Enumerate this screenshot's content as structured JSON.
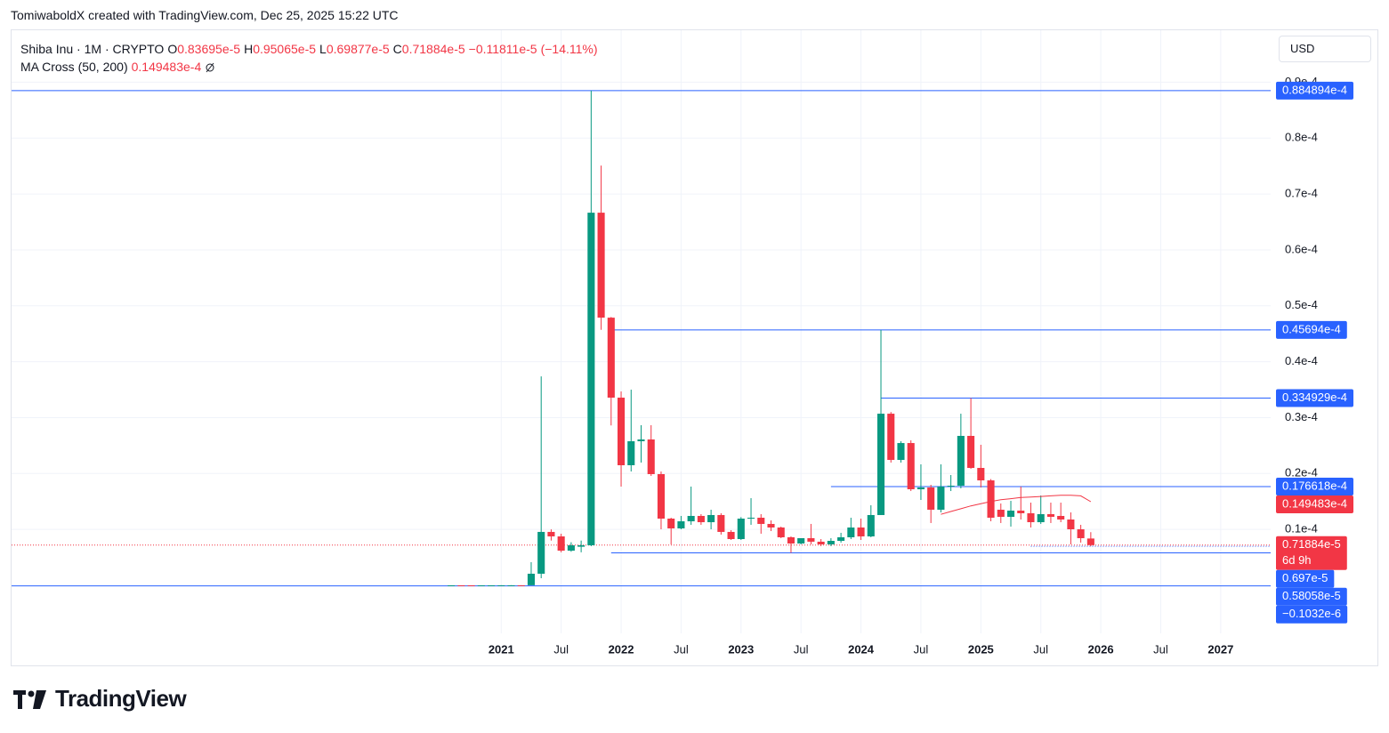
{
  "header": {
    "attribution": "TomiwaboldX created with TradingView.com, Dec 25, 2025 15:22 UTC",
    "currency": "USD"
  },
  "footer": {
    "brand": "TradingView"
  },
  "chart_data": {
    "type": "candlestick",
    "title": "Shiba Inu · 1M · CRYPTO",
    "ohlc_legend": [
      {
        "label": "O",
        "value": 8.3695e-06,
        "value_label": "0.83695e-5"
      },
      {
        "label": "H",
        "value": 9.5065e-06,
        "value_label": "0.95065e-5"
      },
      {
        "label": "L",
        "value": 6.9877e-06,
        "value_label": "0.69877e-5"
      },
      {
        "label": "C",
        "value": 7.1884e-06,
        "value_label": "0.71884e-5"
      }
    ],
    "change": {
      "value": -1.1811e-06,
      "value_label": "−0.11811e-5",
      "percent": -14.11,
      "percent_label": "(−14.11%)"
    },
    "up_color": "#089981",
    "down_color": "#f23645",
    "x": [
      "2020-08",
      "2020-09",
      "2020-10",
      "2020-11",
      "2020-12",
      "2021-01",
      "2021-02",
      "2021-03",
      "2021-04",
      "2021-05",
      "2021-06",
      "2021-07",
      "2021-08",
      "2021-09",
      "2021-10",
      "2021-11",
      "2021-12",
      "2022-01",
      "2022-02",
      "2022-03",
      "2022-04",
      "2022-05",
      "2022-06",
      "2022-07",
      "2022-08",
      "2022-09",
      "2022-10",
      "2022-11",
      "2022-12",
      "2023-01",
      "2023-02",
      "2023-03",
      "2023-04",
      "2023-05",
      "2023-06",
      "2023-07",
      "2023-08",
      "2023-09",
      "2023-10",
      "2023-11",
      "2023-12",
      "2024-01",
      "2024-02",
      "2024-03",
      "2024-04",
      "2024-05",
      "2024-06",
      "2024-07",
      "2024-08",
      "2024-09",
      "2024-10",
      "2024-11",
      "2024-12",
      "2025-01",
      "2025-02",
      "2025-03",
      "2025-04",
      "2025-05",
      "2025-06",
      "2025-07",
      "2025-08",
      "2025-09",
      "2025-10",
      "2025-11",
      "2025-12"
    ],
    "open": [
      2e-09,
      3e-09,
      2e-09,
      1.5e-09,
      2.5e-09,
      3e-09,
      9e-09,
      1e-08,
      7e-09,
      2.07e-06,
      9.55e-06,
      8.75e-06,
      6.2e-06,
      6.9e-06,
      7.16e-06,
      6.666e-05,
      4.788e-05,
      3.357e-05,
      2.148e-05,
      2.577e-05,
      2.609e-05,
      1.989e-05,
      1.193e-05,
      1.018e-05,
      1.145e-05,
      1.241e-05,
      1.129e-05,
      1.257e-05,
      9.55e-06,
      8.27e-06,
      1.193e-05,
      1.209e-05,
      1.098e-05,
      1.034e-05,
      8.59e-06,
      7.48e-06,
      8.43e-06,
      7.8e-06,
      7.32e-06,
      7.95e-06,
      8.59e-06,
      1.034e-05,
      8.75e-06,
      1.257e-05,
      3.07e-05,
      2.243e-05,
      2.545e-05,
      1.718e-05,
      1.75e-05,
      1.352e-05,
      1.766e-05,
      1.782e-05,
      2.673e-05,
      2.1e-05,
      1.877e-05,
      1.352e-05,
      1.225e-05,
      1.336e-05,
      1.289e-05,
      1.129e-05,
      1.273e-05,
      1.241e-05,
      1.177e-05,
      1.002e-05,
      8.3695e-06
    ],
    "high": [
      5e-09,
      4e-09,
      3e-09,
      3e-09,
      4e-09,
      1.5e-08,
      2.5e-08,
      1.8e-08,
      4.14e-06,
      3.738e-05,
      1e-05,
      9.23e-06,
      7.7e-06,
      8e-06,
      8.84894e-05,
      7.51e-05,
      4.8e-05,
      3.468e-05,
      3.5e-05,
      2.864e-05,
      2.864e-05,
      2.036e-05,
      1.209e-05,
      1.241e-05,
      1.766e-05,
      1.273e-05,
      1.352e-05,
      1.289e-05,
      9.86e-06,
      1.22e-05,
      1.559e-05,
      1.273e-05,
      1.161e-05,
      1.05e-05,
      8.75e-06,
      8.43e-06,
      1.098e-05,
      8.27e-06,
      8.43e-06,
      9.39e-06,
      1.209e-05,
      1.193e-05,
      1.432e-05,
      4.5694e-05,
      3.1e-05,
      2.577e-05,
      2.593e-05,
      2.164e-05,
      1.798e-05,
      2.164e-05,
      1.973e-05,
      3.07e-05,
      3.34929e-05,
      2.514e-05,
      1.9e-05,
      1.464e-05,
      1.511e-05,
      1.766e-05,
      1.479e-05,
      1.607e-05,
      1.479e-05,
      1.479e-05,
      1.304e-05,
      1.082e-05,
      9.5065e-06
    ],
    "low": [
      1e-09,
      1e-09,
      1e-09,
      1e-09,
      2e-09,
      2e-09,
      8e-09,
      6e-09,
      6e-09,
      1.27e-06,
      8e-06,
      5.9e-06,
      6e-06,
      5.9e-06,
      7e-06,
      4.57e-05,
      2.86e-05,
      1.766e-05,
      2.036e-05,
      2.195e-05,
      1.957e-05,
      1.002e-05,
      7.32e-06,
      1.002e-05,
      1.082e-05,
      1.082e-05,
      1.002e-05,
      9.07e-06,
      8.11e-06,
      8.11e-06,
      1.082e-05,
      9.23e-06,
      9.7e-06,
      8.43e-06,
      5.8058e-06,
      7.32e-06,
      7.32e-06,
      7e-06,
      7e-06,
      7.64e-06,
      8.27e-06,
      8.11e-06,
      8.59e-06,
      1.257e-05,
      2.195e-05,
      2.195e-05,
      1.686e-05,
      1.527e-05,
      1.114e-05,
      1.304e-05,
      1.686e-05,
      1.734e-05,
      2.084e-05,
      1.75e-05,
      1.145e-05,
      1.114e-05,
      1.05e-05,
      1.177e-05,
      1.034e-05,
      1.098e-05,
      1.114e-05,
      1.129e-05,
      7.32e-06,
      7.64e-06,
      6.9877e-06
    ],
    "close": [
      3e-09,
      2e-09,
      1.5e-09,
      2.5e-09,
      3e-09,
      9e-09,
      1e-08,
      7e-09,
      2.07e-06,
      9.55e-06,
      8.75e-06,
      6.2e-06,
      7.16e-06,
      7.16e-06,
      6.666e-05,
      4.788e-05,
      3.357e-05,
      2.148e-05,
      2.577e-05,
      2.609e-05,
      1.989e-05,
      1.193e-05,
      1.018e-05,
      1.145e-05,
      1.241e-05,
      1.129e-05,
      1.257e-05,
      9.55e-06,
      8.27e-06,
      1.193e-05,
      1.209e-05,
      1.098e-05,
      1.034e-05,
      8.59e-06,
      7.48e-06,
      8.43e-06,
      7.8e-06,
      7.32e-06,
      7.95e-06,
      8.59e-06,
      1.034e-05,
      8.75e-06,
      1.257e-05,
      3.07e-05,
      2.243e-05,
      2.545e-05,
      1.718e-05,
      1.75e-05,
      1.352e-05,
      1.766e-05,
      1.782e-05,
      2.673e-05,
      2.1e-05,
      1.877e-05,
      1.209e-05,
      1.225e-05,
      1.336e-05,
      1.289e-05,
      1.129e-05,
      1.273e-05,
      1.225e-05,
      1.177e-05,
      1.002e-05,
      8.43e-06,
      7.1884e-06
    ],
    "ma": {
      "name": "MA Cross (50, 200)",
      "color": "#f23645",
      "last_label": "0.149483e-4",
      "values": [
        null,
        null,
        null,
        null,
        null,
        null,
        null,
        null,
        null,
        null,
        null,
        null,
        null,
        null,
        null,
        null,
        null,
        null,
        null,
        null,
        null,
        null,
        null,
        null,
        null,
        null,
        null,
        null,
        null,
        null,
        null,
        null,
        null,
        null,
        null,
        null,
        null,
        null,
        null,
        null,
        null,
        null,
        null,
        null,
        null,
        null,
        null,
        null,
        null,
        1.27e-05,
        1.32e-05,
        1.37e-05,
        1.42e-05,
        1.46e-05,
        1.5e-05,
        1.53e-05,
        1.55e-05,
        1.57e-05,
        1.58e-05,
        1.59e-05,
        1.6e-05,
        1.61e-05,
        1.61e-05,
        1.6e-05,
        1.49483e-05
      ]
    },
    "last_price": {
      "value": 7.1884e-06,
      "label": "0.71884e-5",
      "countdown": "6d 9h",
      "color": "#f23645"
    },
    "line_color": "#2962ff",
    "price_lines": [
      {
        "value": 8.84894e-05,
        "label": "0.884894e-4"
      },
      {
        "value": 4.5694e-05,
        "label": "0.45694e-4",
        "from": "2021-12"
      },
      {
        "value": 3.34929e-05,
        "label": "0.334929e-4",
        "from": "2024-03"
      },
      {
        "value": 1.76618e-05,
        "label": "0.176618e-4",
        "from": "2023-10"
      },
      {
        "value": 6.97e-06,
        "label": "0.697e-5",
        "from": "2025-06",
        "style": "dotted"
      },
      {
        "value": 5.8058e-06,
        "label": "0.58058e-5",
        "from": "2021-12"
      },
      {
        "value": -1.032e-07,
        "label": "−0.1032e-6"
      }
    ],
    "xlim": [
      "2016-12",
      "2027-06"
    ],
    "xticks": [
      {
        "value": "2021-01",
        "label": "2021"
      },
      {
        "value": "2021-07",
        "label": "Jul"
      },
      {
        "value": "2022-01",
        "label": "2022"
      },
      {
        "value": "2022-07",
        "label": "Jul"
      },
      {
        "value": "2023-01",
        "label": "2023"
      },
      {
        "value": "2023-07",
        "label": "Jul"
      },
      {
        "value": "2024-01",
        "label": "2024"
      },
      {
        "value": "2024-07",
        "label": "Jul"
      },
      {
        "value": "2025-01",
        "label": "2025"
      },
      {
        "value": "2025-07",
        "label": "Jul"
      },
      {
        "value": "2026-01",
        "label": "2026"
      },
      {
        "value": "2026-07",
        "label": "Jul"
      },
      {
        "value": "2027-01",
        "label": "2027"
      }
    ],
    "ylim": [
      -8.6e-06,
      9.93e-05
    ],
    "yticks": [
      {
        "value": 1e-05,
        "label": "0.1e-4"
      },
      {
        "value": 2e-05,
        "label": "0.2e-4"
      },
      {
        "value": 3e-05,
        "label": "0.3e-4"
      },
      {
        "value": 4e-05,
        "label": "0.4e-4"
      },
      {
        "value": 5e-05,
        "label": "0.5e-4"
      },
      {
        "value": 6e-05,
        "label": "0.6e-4"
      },
      {
        "value": 7e-05,
        "label": "0.7e-4"
      },
      {
        "value": 8e-05,
        "label": "0.8e-4"
      },
      {
        "value": 9e-05,
        "label": "0.9e-4"
      }
    ],
    "grid": true
  }
}
